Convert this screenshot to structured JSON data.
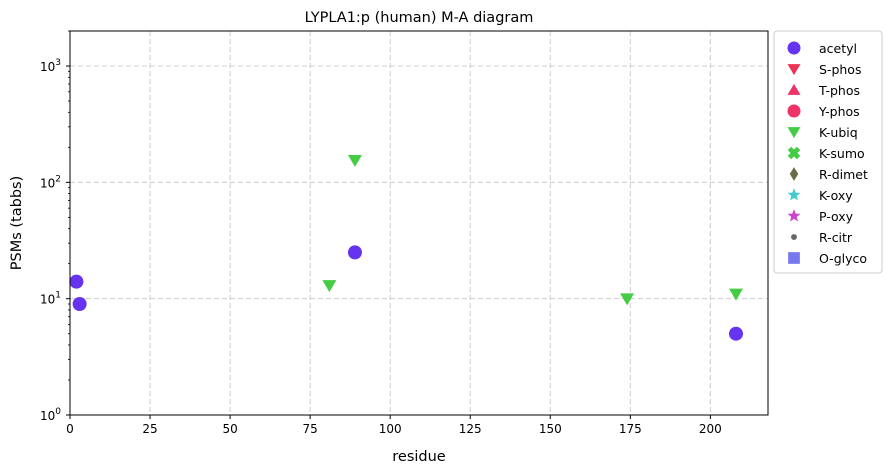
{
  "chart_data": {
    "type": "scatter",
    "title": "LYPLA1:p (human) M-A diagram",
    "xlabel": "residue",
    "ylabel": "PSMs (tabbs)",
    "xlim": [
      0,
      218
    ],
    "ylim": [
      1,
      2000
    ],
    "yscale": "log",
    "grid": true,
    "legend_position": "outside-right",
    "x_ticks": [
      0,
      25,
      50,
      75,
      100,
      125,
      150,
      175,
      200
    ],
    "y_ticks": [
      {
        "value": 1,
        "label": "10",
        "exp": "0"
      },
      {
        "value": 10,
        "label": "10",
        "exp": "1"
      },
      {
        "value": 100,
        "label": "10",
        "exp": "2"
      },
      {
        "value": 1000,
        "label": "10",
        "exp": "3"
      }
    ],
    "series": [
      {
        "name": "acetyl",
        "marker": "circle",
        "color": "#6633ee",
        "points": [
          {
            "x": 2,
            "y": 14
          },
          {
            "x": 3,
            "y": 9
          },
          {
            "x": 89,
            "y": 25
          },
          {
            "x": 208,
            "y": 5
          }
        ]
      },
      {
        "name": "S-phos",
        "marker": "triangle-down",
        "color": "#ee3355",
        "points": []
      },
      {
        "name": "T-phos",
        "marker": "triangle-up",
        "color": "#ee3366",
        "points": []
      },
      {
        "name": "Y-phos",
        "marker": "circle",
        "color": "#ee3366",
        "points": []
      },
      {
        "name": "K-ubiq",
        "marker": "triangle-down",
        "color": "#44cc44",
        "points": [
          {
            "x": 81,
            "y": 13
          },
          {
            "x": 89,
            "y": 155
          },
          {
            "x": 174,
            "y": 10
          },
          {
            "x": 208,
            "y": 11
          }
        ]
      },
      {
        "name": "K-sumo",
        "marker": "x",
        "color": "#44cc44",
        "points": []
      },
      {
        "name": "R-dimet",
        "marker": "diamond",
        "color": "#6b6b45",
        "points": []
      },
      {
        "name": "K-oxy",
        "marker": "star",
        "color": "#44cccc",
        "points": []
      },
      {
        "name": "P-oxy",
        "marker": "star",
        "color": "#cc44cc",
        "points": []
      },
      {
        "name": "R-citr",
        "marker": "small-circle",
        "color": "#666666",
        "points": []
      },
      {
        "name": "O-glyco",
        "marker": "square",
        "color": "#7777ee",
        "points": []
      }
    ]
  }
}
